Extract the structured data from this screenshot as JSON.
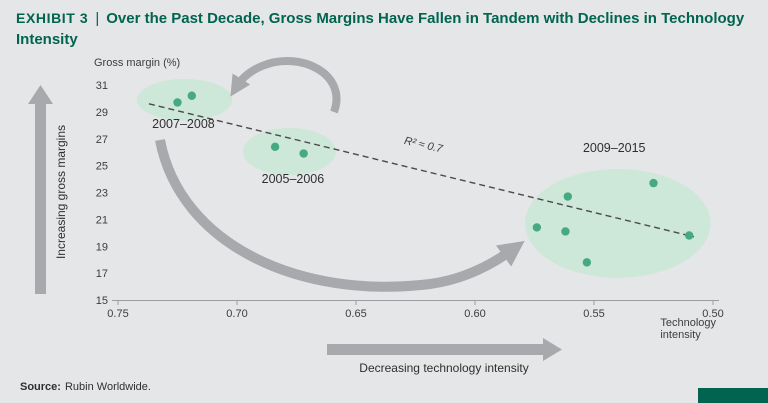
{
  "title": {
    "exhibit": "Exhibit 3",
    "separator": "|",
    "text": "Over the Past Decade, Gross Margins Have Fallen in Tandem with Declines in Technology Intensity"
  },
  "source": {
    "label": "Source:",
    "text": "Rubin Worldwide."
  },
  "annotations": {
    "y_arrow": "Increasing gross margins",
    "x_arrow": "Decreasing technology intensity"
  },
  "colors": {
    "accent_teal": "#006450",
    "dot_green": "#46a97f",
    "ellipse_green": "#cde7d8",
    "arrow_gray": "#a7a9ac",
    "background": "#e5e6e7",
    "text_dark": "#2f2f2f"
  },
  "chart_data": {
    "type": "scatter",
    "title": "Over the Past Decade, Gross Margins Have Fallen in Tandem with Declines in Technology Intensity",
    "y_axis_label": "Gross margin (%)",
    "x_axis_label": "Technology intensity",
    "x_ticks": [
      "0.75",
      "0.70",
      "0.65",
      "0.60",
      "0.55",
      "0.50"
    ],
    "y_ticks": [
      31,
      29,
      27,
      25,
      23,
      21,
      19,
      17,
      15
    ],
    "x_range": [
      0.75,
      0.5
    ],
    "y_range": [
      15,
      31
    ],
    "x_axis_reversed": true,
    "grid": false,
    "trendline": {
      "style": "dashed",
      "x": [
        0.737,
        0.508
      ],
      "y": [
        29.6,
        19.7
      ],
      "label": "R² ≈ 0.7",
      "label_anchor": [
        0.622,
        26.3
      ]
    },
    "clusters": [
      {
        "label": "2007–2008",
        "points": [
          [
            0.725,
            29.7
          ],
          [
            0.719,
            30.2
          ]
        ],
        "ellipse": {
          "cx": 0.722,
          "cy": 29.9,
          "rx": 0.02,
          "ry": 1.55
        },
        "label_anchor": [
          0.7225,
          27.8
        ]
      },
      {
        "label": "2005–2006",
        "points": [
          [
            0.684,
            26.4
          ],
          [
            0.672,
            25.9
          ]
        ],
        "ellipse": {
          "cx": 0.678,
          "cy": 26.05,
          "rx": 0.0195,
          "ry": 1.75
        },
        "label_anchor": [
          0.6765,
          23.7
        ]
      },
      {
        "label": "2009–2015",
        "points": [
          [
            0.574,
            20.4
          ],
          [
            0.561,
            22.7
          ],
          [
            0.562,
            20.1
          ],
          [
            0.553,
            17.8
          ],
          [
            0.525,
            23.7
          ],
          [
            0.51,
            19.8
          ]
        ],
        "ellipse": {
          "cx": 0.54,
          "cy": 20.7,
          "rx": 0.039,
          "ry": 4.05
        },
        "label_anchor": [
          0.5415,
          26.0
        ]
      }
    ]
  }
}
